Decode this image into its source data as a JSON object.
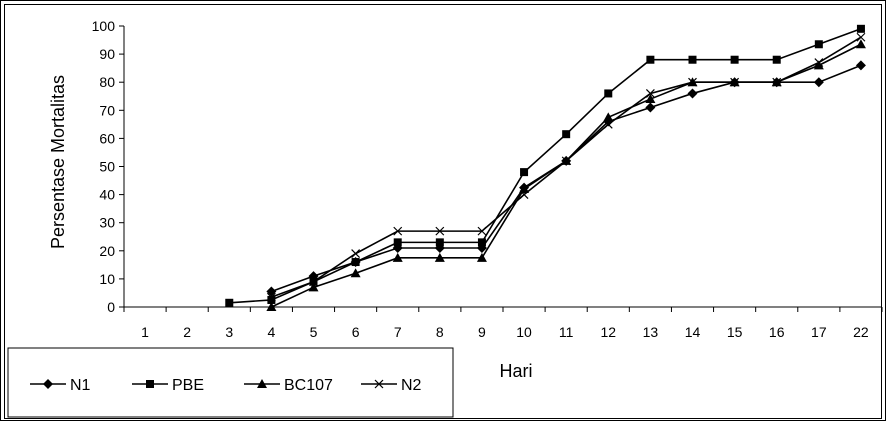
{
  "chart_data": {
    "type": "line",
    "xlabel": "Hari",
    "ylabel": "Persentase Mortalitas",
    "ylim": [
      0,
      100
    ],
    "yticks": [
      0,
      10,
      20,
      30,
      40,
      50,
      60,
      70,
      80,
      90,
      100
    ],
    "categories": [
      "1",
      "2",
      "3",
      "4",
      "5",
      "6",
      "7",
      "8",
      "9",
      "10",
      "11",
      "12",
      "13",
      "14",
      "15",
      "16",
      "17",
      "22"
    ],
    "grid": false,
    "legend_position": "bottom-left",
    "series": [
      {
        "name": "N1",
        "marker": "diamond",
        "color": "#000000",
        "values": [
          null,
          null,
          null,
          5.5,
          11,
          16,
          21,
          21,
          21,
          42.5,
          52,
          66,
          71,
          76,
          80,
          80,
          80,
          86
        ]
      },
      {
        "name": "PBE",
        "marker": "square",
        "color": "#000000",
        "values": [
          null,
          null,
          1.5,
          2.5,
          9,
          16,
          23,
          23,
          23,
          48,
          61.5,
          76,
          88,
          88,
          88,
          88,
          93.5,
          99
        ]
      },
      {
        "name": "BC107",
        "marker": "triangle",
        "color": "#000000",
        "values": [
          null,
          null,
          null,
          0,
          7,
          12,
          17.5,
          17.5,
          17.5,
          42,
          52,
          67.5,
          74,
          80,
          80,
          80,
          86,
          93.5
        ]
      },
      {
        "name": "N2",
        "marker": "cross",
        "color": "#000000",
        "values": [
          null,
          null,
          null,
          3.5,
          9,
          19,
          27,
          27,
          27,
          40,
          52,
          65,
          76,
          80,
          80,
          80,
          87,
          96
        ]
      }
    ]
  }
}
